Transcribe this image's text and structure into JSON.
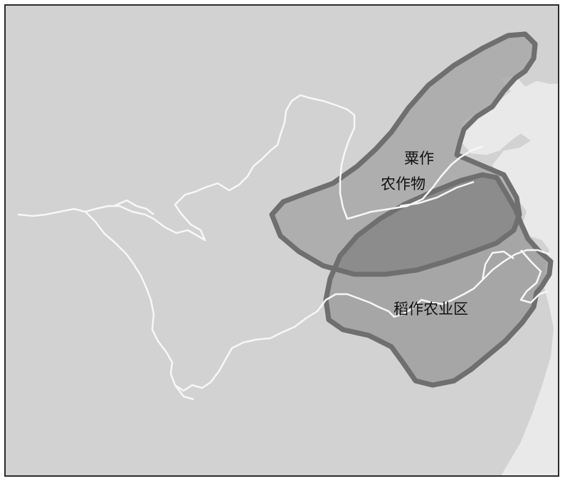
{
  "map": {
    "labels": {
      "millet_line1": "粟作",
      "millet_line2": "农作物",
      "rice": "稻作农业区"
    },
    "colors": {
      "land": "#d2d2d2",
      "sea": "#e9e9e9",
      "river": "#f7f7f7",
      "millet_zone_fill": "#a8a8a8",
      "millet_zone_border": "#6f6f6f",
      "rice_zone_fill": "#9f9f9f",
      "rice_zone_border": "#6f6f6f",
      "overlap_fill": "#8a8a8a",
      "frame_border": "#2b2b2b"
    }
  }
}
